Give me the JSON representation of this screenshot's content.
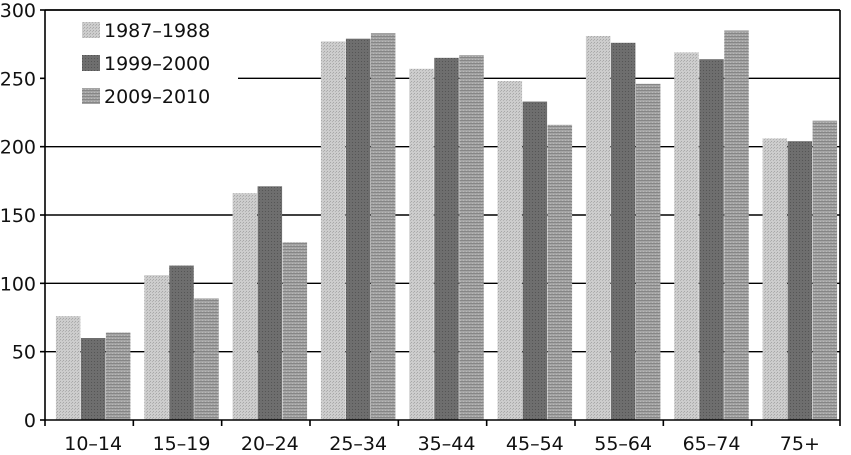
{
  "chart_data": {
    "type": "bar",
    "title": "",
    "xlabel": "",
    "ylabel": "",
    "ylim": [
      0,
      300
    ],
    "yticks": [
      0,
      50,
      100,
      150,
      200,
      250,
      300
    ],
    "grid": "horizontal",
    "legend_position": "top-left",
    "categories": [
      "10–14",
      "15–19",
      "20–24",
      "25–34",
      "35–44",
      "45–54",
      "55–64",
      "65–74",
      "75+"
    ],
    "series": [
      {
        "name": "1987–1988",
        "color": "#c4c4c4",
        "values": [
          76,
          106,
          166,
          277,
          257,
          248,
          281,
          269,
          206
        ]
      },
      {
        "name": "1999–2000",
        "color": "#6a6a6a",
        "values": [
          60,
          113,
          171,
          279,
          265,
          233,
          276,
          264,
          204
        ]
      },
      {
        "name": "2009–2010",
        "color": "#9c9c9c",
        "values": [
          64,
          89,
          130,
          283,
          267,
          216,
          246,
          285,
          219
        ]
      }
    ]
  }
}
